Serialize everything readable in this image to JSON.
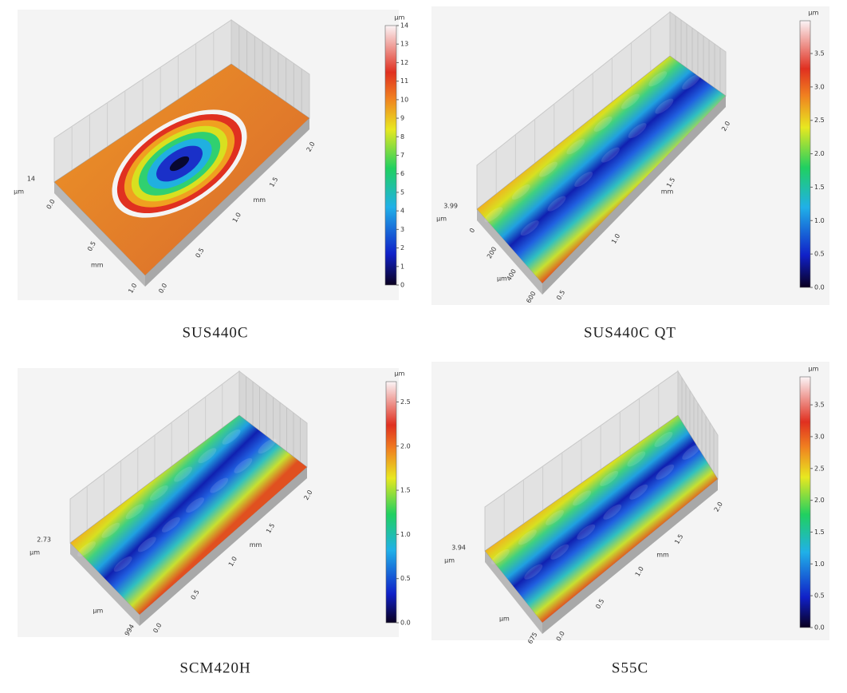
{
  "panels": [
    {
      "caption": "SUS440C",
      "colorbar": {
        "unit": "μm",
        "ticks": [
          "0",
          "1",
          "2",
          "3",
          "4",
          "5",
          "6",
          "7",
          "8",
          "9",
          "10",
          "11",
          "12",
          "13",
          "14"
        ]
      },
      "z": {
        "max": "14",
        "unit": "μm"
      },
      "x_axis": {
        "unit": "mm",
        "ticks": [
          "0.0",
          "0.5",
          "1.0",
          "1.5",
          "2.0"
        ]
      },
      "y_axis": {
        "unit": "mm",
        "ticks": [
          "0.0",
          "0.5",
          "1.0"
        ]
      }
    },
    {
      "caption": "SUS440C QT",
      "colorbar": {
        "unit": "μm",
        "ticks": [
          "0.0",
          "0.5",
          "1.0",
          "1.5",
          "2.0",
          "2.5",
          "3.0",
          "3.5"
        ]
      },
      "z": {
        "max": "3.99",
        "unit": "μm"
      },
      "x_axis": {
        "unit": "mm",
        "ticks": [
          "0.5",
          "1.0",
          "1.5",
          "2.0"
        ]
      },
      "y_axis": {
        "unit": "μm",
        "ticks": [
          "0",
          "200",
          "400",
          "600"
        ]
      }
    },
    {
      "caption": "SCM420H",
      "colorbar": {
        "unit": "μm",
        "ticks": [
          "0.0",
          "0.5",
          "1.0",
          "1.5",
          "2.0",
          "2.5"
        ]
      },
      "z": {
        "max": "2.73",
        "unit": "μm"
      },
      "x_axis": {
        "unit": "mm",
        "ticks": [
          "0.0",
          "0.5",
          "1.0",
          "1.5",
          "2.0"
        ]
      },
      "y_axis": {
        "unit": "μm",
        "ticks": [
          "994"
        ]
      }
    },
    {
      "caption": "S55C",
      "colorbar": {
        "unit": "μm",
        "ticks": [
          "0.0",
          "0.5",
          "1.0",
          "1.5",
          "2.0",
          "2.5",
          "3.0",
          "3.5"
        ]
      },
      "z": {
        "max": "3.94",
        "unit": "μm"
      },
      "x_axis": {
        "unit": "mm",
        "ticks": [
          "0.0",
          "0.5",
          "1.0",
          "1.5",
          "2.0"
        ]
      },
      "y_axis": {
        "unit": "μm",
        "ticks": [
          "675"
        ]
      }
    }
  ]
}
